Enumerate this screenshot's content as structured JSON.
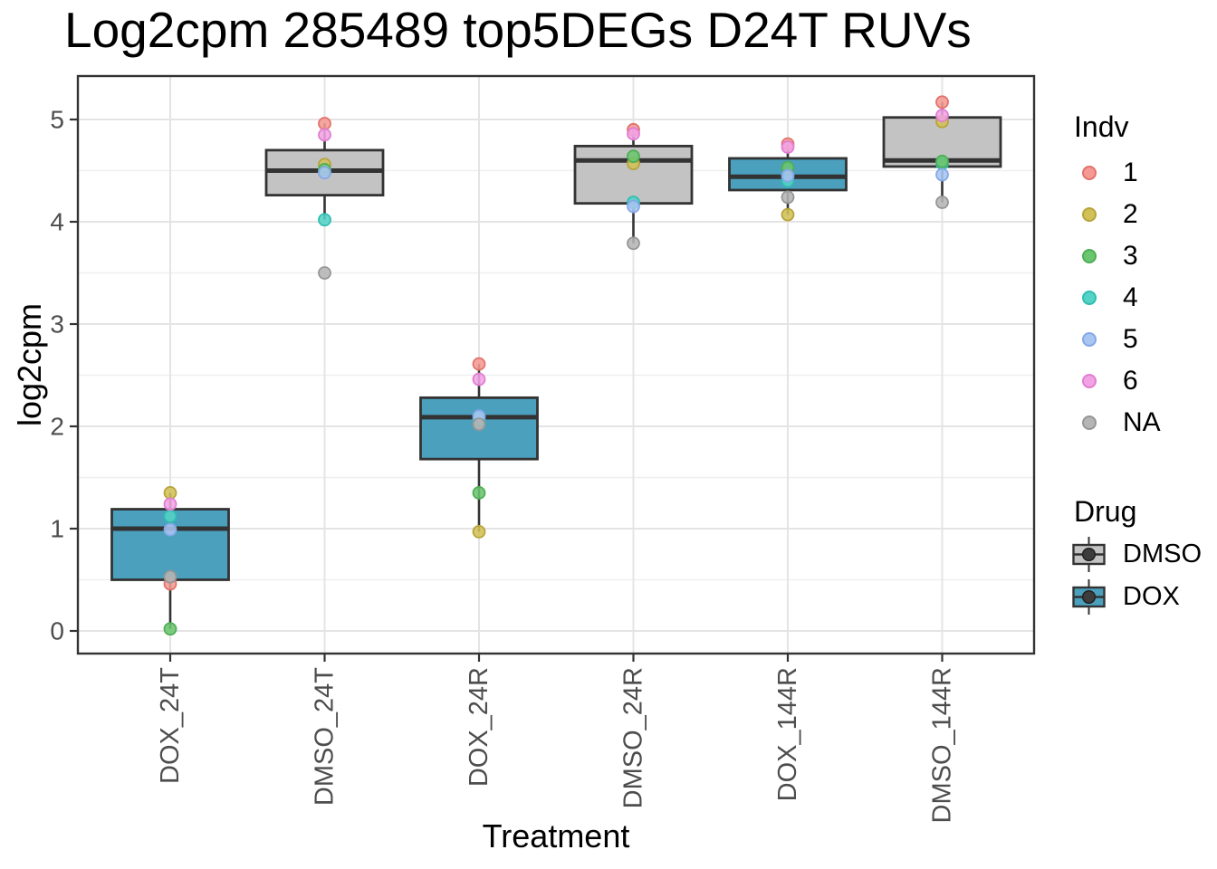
{
  "title": "Log2cpm 285489 top5DEGs D24T RUVs",
  "chart_data": {
    "type": "boxplot",
    "title": "Log2cpm 285489 top5DEGs D24T RUVs",
    "xlabel": "Treatment",
    "ylabel": "log2cpm",
    "ylim": [
      -0.22,
      5.45
    ],
    "y_major_ticks": [
      0,
      1,
      2,
      3,
      4,
      5
    ],
    "y_minor_ticks": [
      0.5,
      1.5,
      2.5,
      3.5,
      4.5
    ],
    "grid": true,
    "legend_position": "right",
    "categories": [
      "DOX_24T",
      "DMSO_24T",
      "DOX_24R",
      "DMSO_24R",
      "DOX_144R",
      "DMSO_144R"
    ],
    "groups": [
      {
        "label": "DOX_24T",
        "drug": "DOX",
        "box": {
          "q1": 0.5,
          "median": 1.0,
          "q3": 1.19,
          "whisker_low": 0.02,
          "whisker_high": 1.35
        },
        "points": [
          {
            "indv": "1",
            "value": 0.46
          },
          {
            "indv": "2",
            "value": 1.35
          },
          {
            "indv": "4",
            "value": 1.12
          },
          {
            "indv": "3",
            "value": 0.02
          },
          {
            "indv": "5",
            "value": 0.99
          },
          {
            "indv": "6",
            "value": 1.24
          },
          {
            "indv": "NA",
            "value": 0.53
          }
        ]
      },
      {
        "label": "DMSO_24T",
        "drug": "DMSO",
        "box": {
          "q1": 4.26,
          "median": 4.5,
          "q3": 4.7,
          "whisker_low": 4.02,
          "whisker_high": 4.96
        },
        "points": [
          {
            "indv": "1",
            "value": 4.96
          },
          {
            "indv": "2",
            "value": 4.56
          },
          {
            "indv": "4",
            "value": 4.02
          },
          {
            "indv": "3",
            "value": 4.51
          },
          {
            "indv": "5",
            "value": 4.48
          },
          {
            "indv": "6",
            "value": 4.85
          },
          {
            "indv": "NA",
            "value": 3.5
          }
        ]
      },
      {
        "label": "DOX_24R",
        "drug": "DOX",
        "box": {
          "q1": 1.68,
          "median": 2.09,
          "q3": 2.28,
          "whisker_low": 0.97,
          "whisker_high": 2.61
        },
        "points": [
          {
            "indv": "1",
            "value": 2.61
          },
          {
            "indv": "2",
            "value": 0.97
          },
          {
            "indv": "4",
            "value": 2.07
          },
          {
            "indv": "3",
            "value": 1.35
          },
          {
            "indv": "5",
            "value": 2.1
          },
          {
            "indv": "6",
            "value": 2.46
          },
          {
            "indv": "NA",
            "value": 2.02
          }
        ]
      },
      {
        "label": "DMSO_24R",
        "drug": "DMSO",
        "box": {
          "q1": 4.18,
          "median": 4.6,
          "q3": 4.74,
          "whisker_low": 3.79,
          "whisker_high": 4.9
        },
        "points": [
          {
            "indv": "1",
            "value": 4.9
          },
          {
            "indv": "2",
            "value": 4.57
          },
          {
            "indv": "4",
            "value": 4.19
          },
          {
            "indv": "3",
            "value": 4.64
          },
          {
            "indv": "5",
            "value": 4.15
          },
          {
            "indv": "6",
            "value": 4.86
          },
          {
            "indv": "NA",
            "value": 3.79
          }
        ]
      },
      {
        "label": "DOX_144R",
        "drug": "DOX",
        "box": {
          "q1": 4.31,
          "median": 4.44,
          "q3": 4.62,
          "whisker_low": 4.07,
          "whisker_high": 4.76
        },
        "points": [
          {
            "indv": "1",
            "value": 4.76
          },
          {
            "indv": "2",
            "value": 4.07
          },
          {
            "indv": "4",
            "value": 4.4
          },
          {
            "indv": "3",
            "value": 4.53
          },
          {
            "indv": "5",
            "value": 4.45
          },
          {
            "indv": "6",
            "value": 4.73
          },
          {
            "indv": "NA",
            "value": 4.24
          }
        ]
      },
      {
        "label": "DMSO_144R",
        "drug": "DMSO",
        "box": {
          "q1": 4.54,
          "median": 4.6,
          "q3": 5.02,
          "whisker_low": 4.19,
          "whisker_high": 5.17
        },
        "points": [
          {
            "indv": "1",
            "value": 5.17
          },
          {
            "indv": "2",
            "value": 4.98
          },
          {
            "indv": "4",
            "value": 4.57
          },
          {
            "indv": "3",
            "value": 4.59
          },
          {
            "indv": "5",
            "value": 4.46
          },
          {
            "indv": "6",
            "value": 5.04
          },
          {
            "indv": "NA",
            "value": 4.19
          }
        ]
      }
    ],
    "legend": {
      "indv": {
        "title": "Indv",
        "items": [
          {
            "label": "1",
            "fill": "#F59A93",
            "stroke": "#E2726B"
          },
          {
            "label": "2",
            "fill": "#D2C156",
            "stroke": "#B7A43C"
          },
          {
            "label": "3",
            "fill": "#6CC56F",
            "stroke": "#4FAE55"
          },
          {
            "label": "4",
            "fill": "#55D2C6",
            "stroke": "#2FBDB2"
          },
          {
            "label": "5",
            "fill": "#A9C5F2",
            "stroke": "#84A8E6"
          },
          {
            "label": "6",
            "fill": "#F2A3E5",
            "stroke": "#E07ED1"
          },
          {
            "label": "NA",
            "fill": "#B5B5B5",
            "stroke": "#969696"
          }
        ]
      },
      "drug": {
        "title": "Drug",
        "items": [
          {
            "label": "DMSO",
            "fill": "#C3C3C3"
          },
          {
            "label": "DOX",
            "fill": "#4BA0BE"
          }
        ]
      }
    },
    "colors": {
      "DMSO": "#C3C3C3",
      "DOX": "#4BA0BE",
      "line": "#333333",
      "grid_major": "#E4E4E4",
      "grid_minor": "#EFEFEF",
      "tick_label": "#4D4D4D"
    }
  }
}
